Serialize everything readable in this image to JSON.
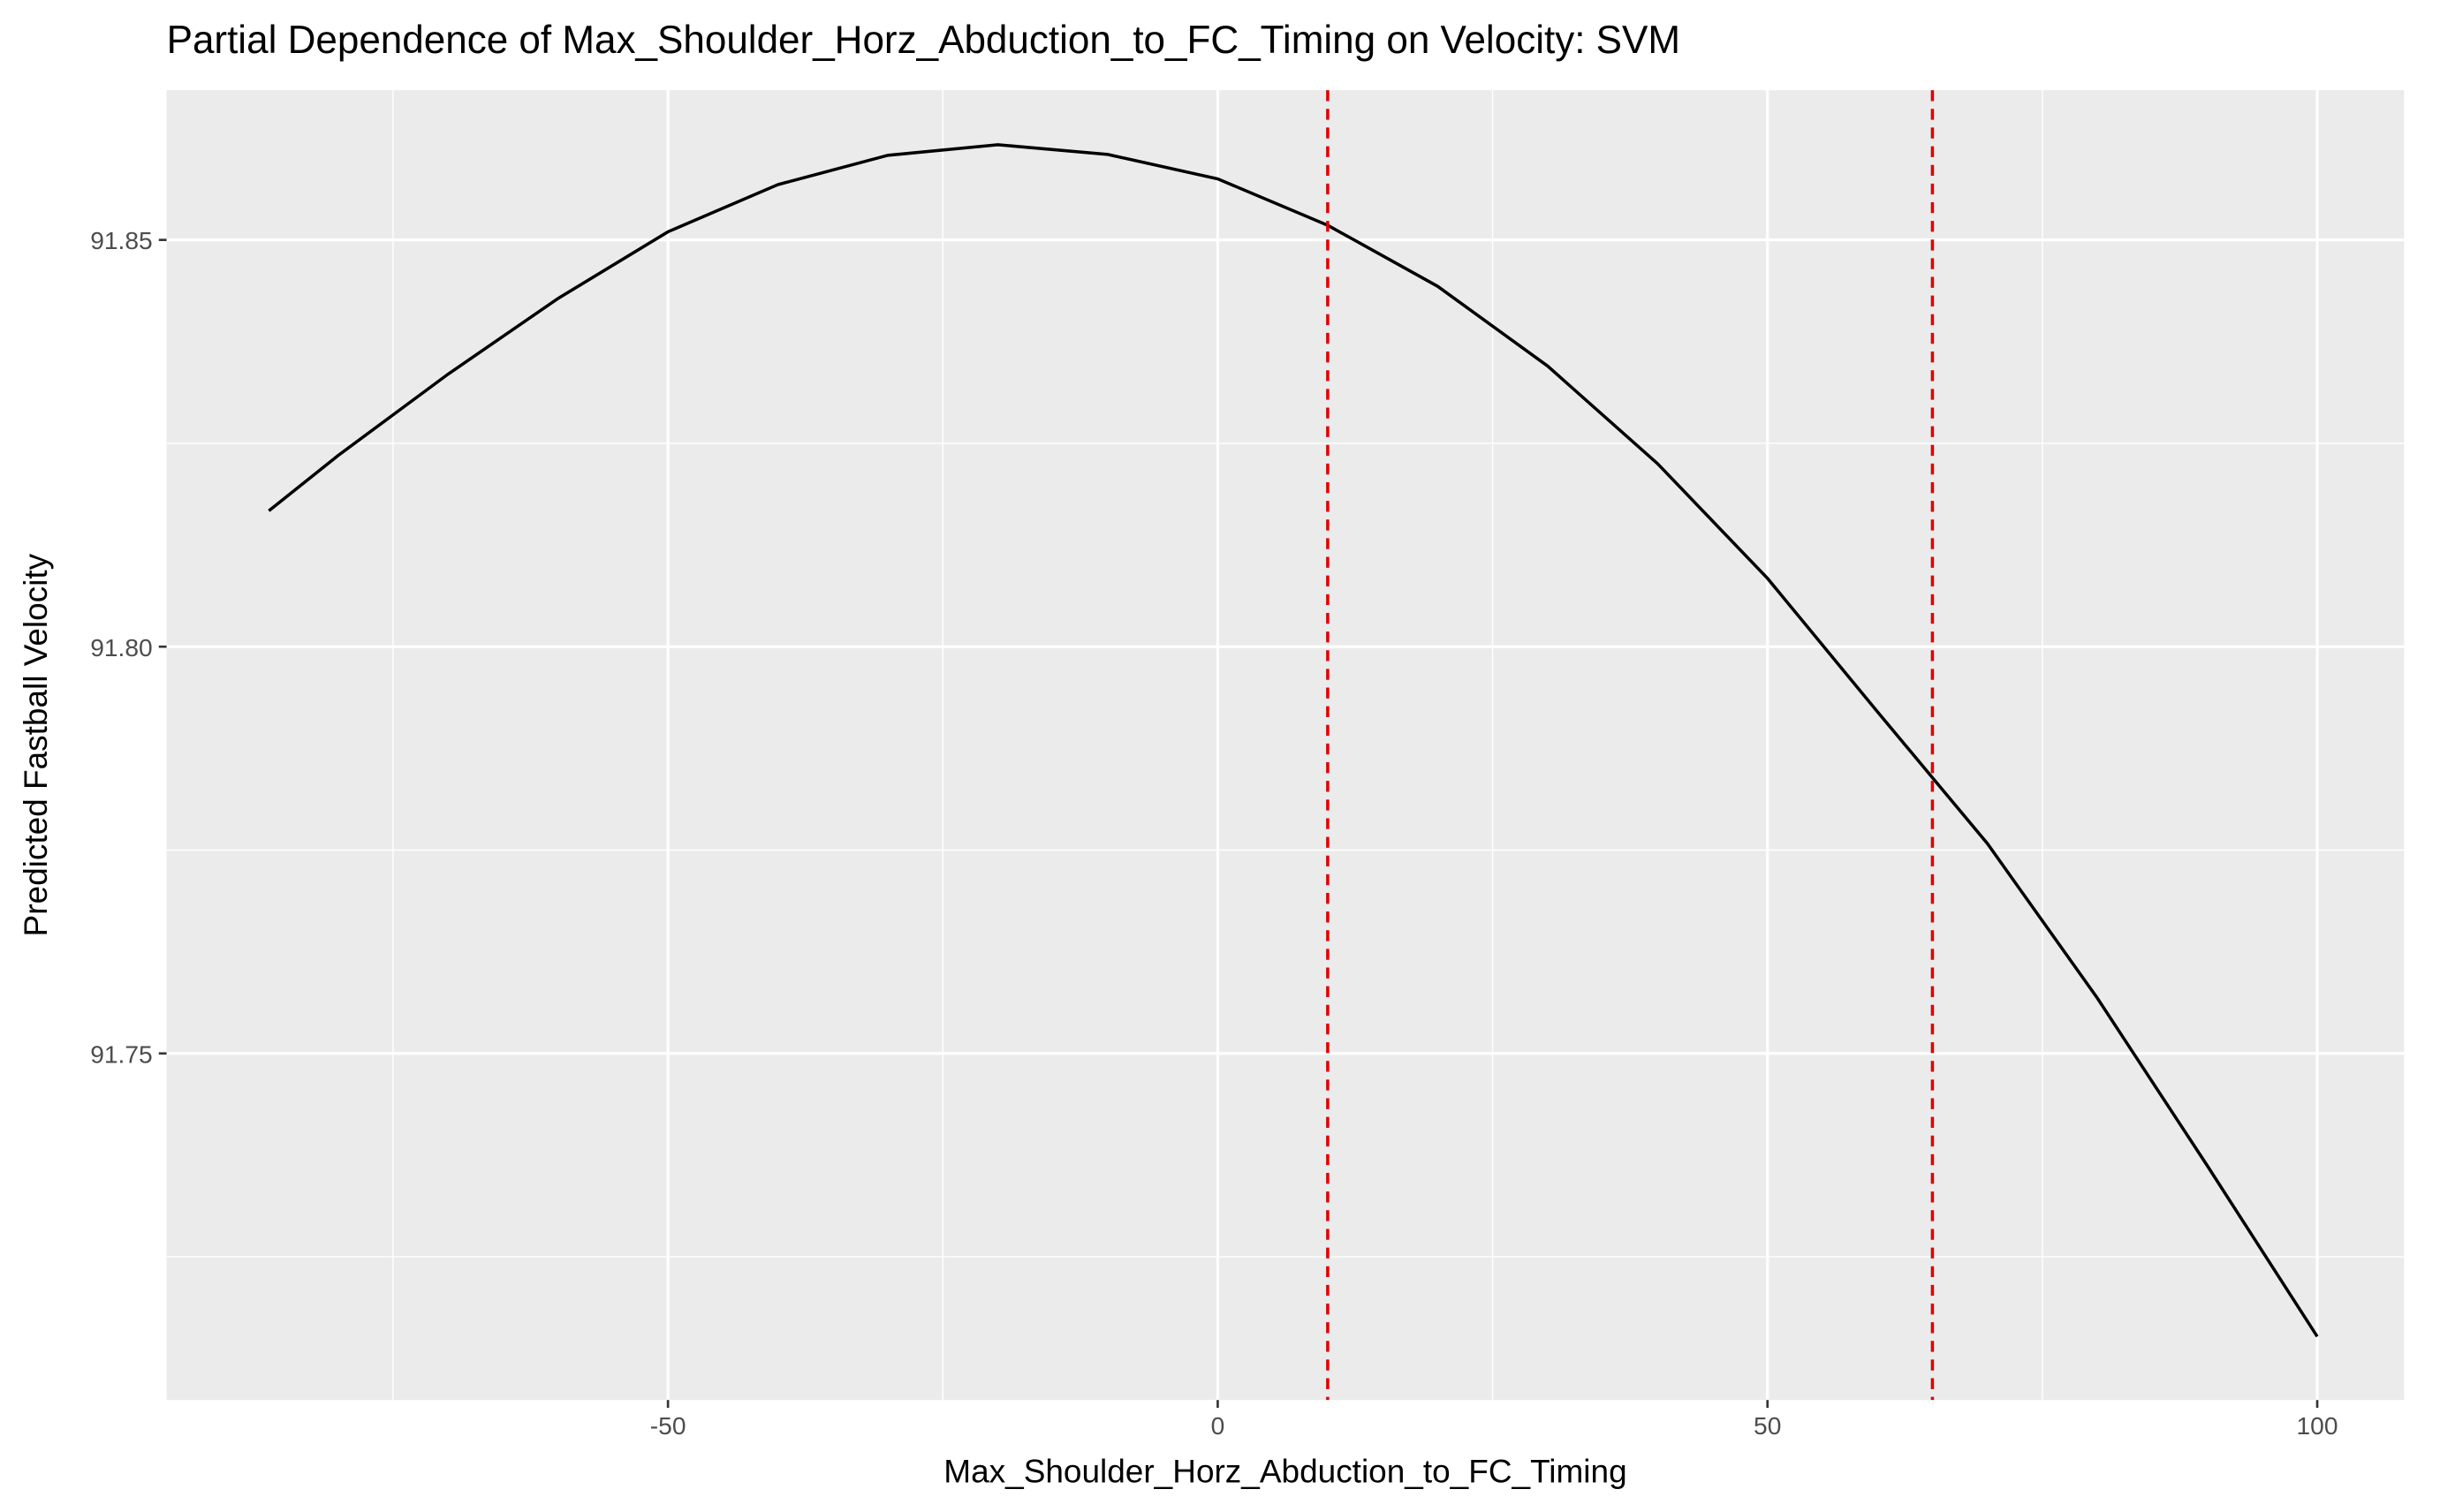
{
  "chart_data": {
    "type": "line",
    "title": "Partial Dependence of Max_Shoulder_Horz_Abduction_to_FC_Timing on Velocity: SVM",
    "x_label": "Max_Shoulder_Horz_Abduction_to_FC_Timing",
    "y_label": "Predicted Fastball Velocity",
    "x": [
      -86.3,
      -80,
      -70,
      -60,
      -50,
      -40,
      -30,
      -20,
      -10,
      0,
      10,
      20,
      30,
      40,
      50,
      60,
      70,
      80,
      90,
      100
    ],
    "series": [
      {
        "color": "#000000",
        "values": [
          91.8167,
          91.8235,
          91.8335,
          91.8428,
          91.851,
          91.8568,
          91.8604,
          91.8617,
          91.8605,
          91.8575,
          91.8518,
          91.8443,
          91.8345,
          91.8225,
          91.8084,
          91.792,
          91.7758,
          91.7568,
          91.7362,
          91.7152
        ]
      }
    ],
    "xlim": [
      -95.6,
      107.9
    ],
    "ylim": [
      91.7074,
      91.8684
    ],
    "xticks": [
      -50,
      0,
      50,
      100
    ],
    "yticks": [
      {
        "value": 91.75,
        "label": "91.75"
      },
      {
        "value": 91.8,
        "label": "91.80"
      },
      {
        "value": 91.85,
        "label": "91.85"
      }
    ],
    "x_minor_grid": [
      -75,
      -25,
      25,
      75
    ],
    "y_minor_grid": [
      91.725,
      91.775,
      91.825
    ],
    "vlines": {
      "x": [
        10,
        65
      ],
      "color": "#e00000"
    },
    "grid": true
  }
}
